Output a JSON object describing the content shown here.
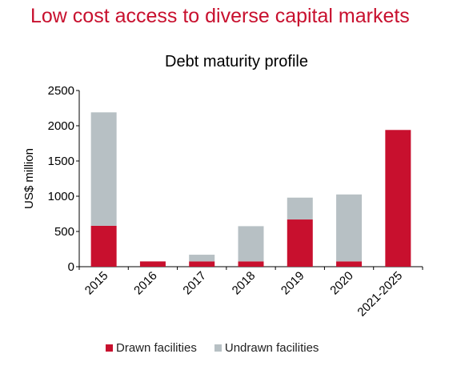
{
  "slide": {
    "title": "Low cost access to diverse capital markets"
  },
  "chart_data": {
    "type": "bar",
    "stacked": true,
    "title": "Debt maturity profile",
    "xlabel": "",
    "ylabel": "US$ million",
    "ylim": [
      0,
      2500
    ],
    "yticks": [
      0,
      500,
      1000,
      1500,
      2000,
      2500
    ],
    "categories": [
      "2015",
      "2016",
      "2017",
      "2018",
      "2019",
      "2020",
      "2021-2025"
    ],
    "series": [
      {
        "name": "Drawn facilities",
        "color": "#c8102e",
        "values": [
          580,
          75,
          75,
          75,
          670,
          75,
          1940
        ]
      },
      {
        "name": "Undrawn facilities",
        "color": "#b7c0c4",
        "values": [
          1610,
          0,
          95,
          500,
          310,
          950,
          0
        ]
      }
    ],
    "legend_position": "bottom",
    "grid": false
  }
}
